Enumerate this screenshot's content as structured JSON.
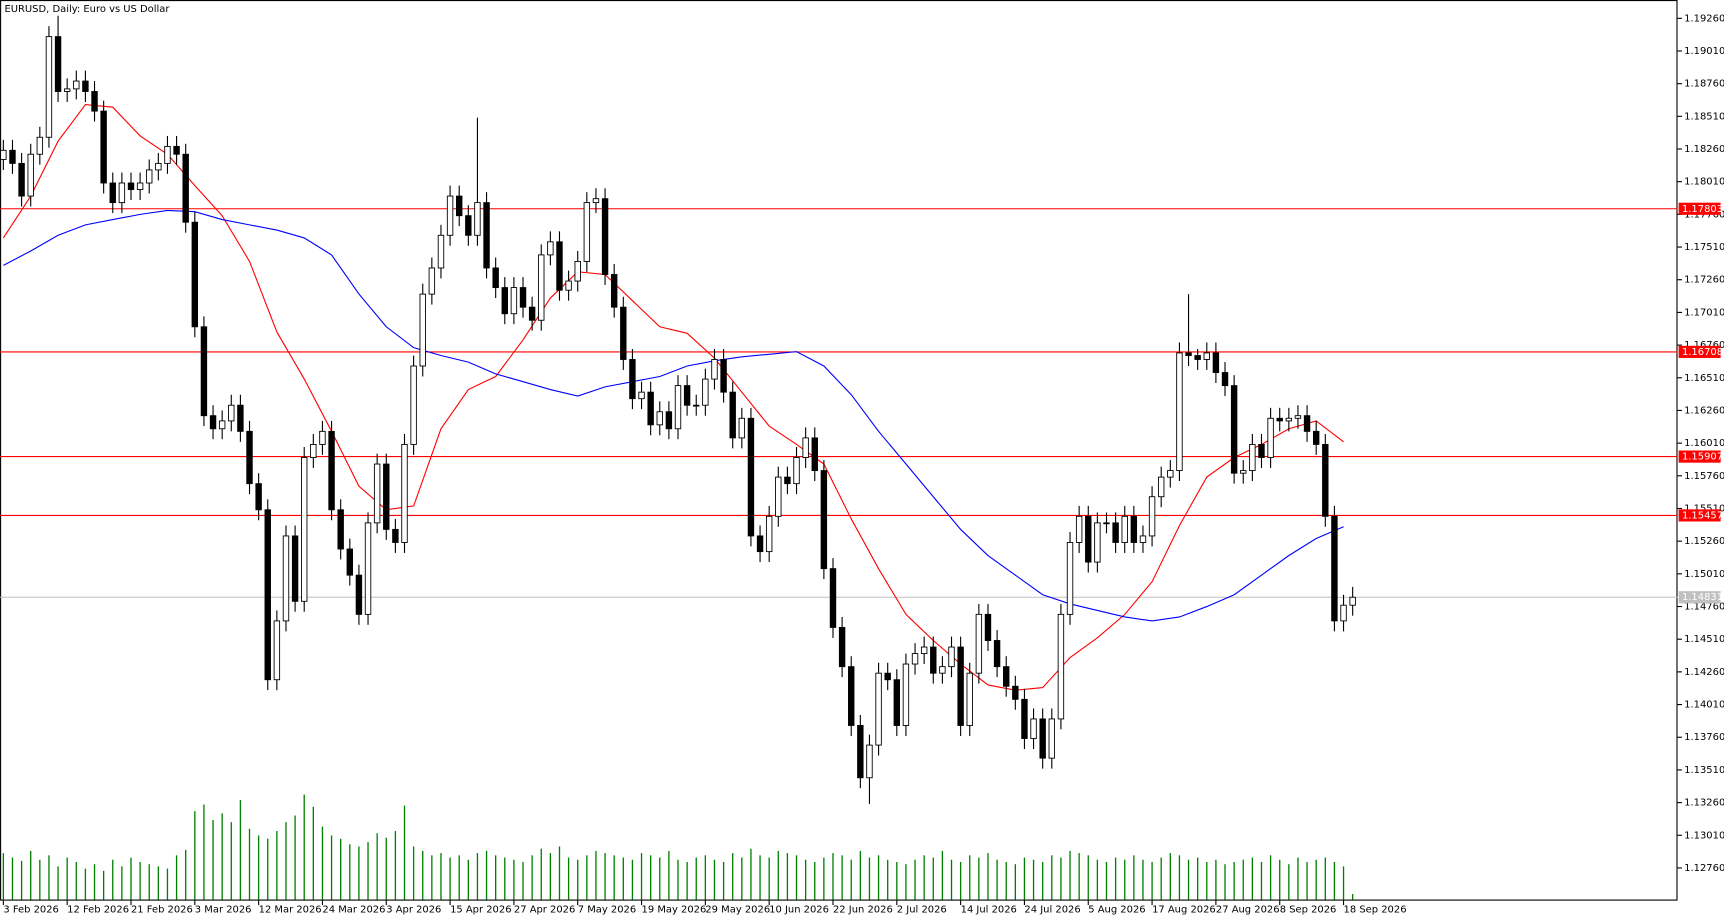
{
  "chart_data": {
    "type": "candlestick",
    "title": "EURUSD, Daily:  Euro vs US Dollar",
    "categories": [
      "3 Feb 2026",
      null,
      null,
      null,
      null,
      null,
      null,
      "12 Feb 2026",
      null,
      null,
      null,
      null,
      null,
      null,
      "21 Feb 2026",
      null,
      null,
      null,
      null,
      null,
      null,
      "3 Mar 2026",
      null,
      null,
      null,
      null,
      null,
      null,
      "12 Mar 2026",
      null,
      null,
      null,
      null,
      null,
      null,
      "24 Mar 2026",
      null,
      null,
      null,
      null,
      null,
      null,
      "3 Apr 2026",
      null,
      null,
      null,
      null,
      null,
      null,
      "15 Apr 2026",
      null,
      null,
      null,
      null,
      null,
      null,
      "27 Apr 2026",
      null,
      null,
      null,
      null,
      null,
      null,
      "7 May 2026",
      null,
      null,
      null,
      null,
      null,
      null,
      "19 May 2026",
      null,
      null,
      null,
      null,
      null,
      null,
      "29 May 2026",
      null,
      null,
      null,
      null,
      null,
      null,
      "10 Jun 2026",
      null,
      null,
      null,
      null,
      null,
      null,
      "22 Jun 2026",
      null,
      null,
      null,
      null,
      null,
      null,
      "2 Jul 2026",
      null,
      null,
      null,
      null,
      null,
      null,
      "14 Jul 2026",
      null,
      null,
      null,
      null,
      null,
      null,
      "24 Jul 2026",
      null,
      null,
      null,
      null,
      null,
      null,
      "5 Aug 2026",
      null,
      null,
      null,
      null,
      null,
      null,
      "17 Aug 2026",
      null,
      null,
      null,
      null,
      null,
      null,
      "27 Aug 2026",
      null,
      null,
      null,
      null,
      null,
      null,
      "8 Sep 2026",
      null,
      null,
      null,
      null,
      null,
      null,
      "18 Sep 2026",
      null
    ],
    "open": [
      1.1818,
      1.1825,
      1.1815,
      1.179,
      1.1822,
      1.1835,
      1.1912,
      1.187,
      1.1872,
      1.1878,
      1.187,
      1.1855,
      1.18,
      1.1785,
      1.18,
      1.1795,
      1.18,
      1.181,
      1.1815,
      1.1828,
      1.1822,
      1.177,
      1.169,
      1.1622,
      1.1612,
      1.1618,
      1.163,
      1.161,
      1.157,
      1.155,
      1.142,
      1.1465,
      1.153,
      1.148,
      1.159,
      1.16,
      1.161,
      1.155,
      1.152,
      1.15,
      1.147,
      1.154,
      1.1585,
      1.1535,
      1.1525,
      1.16,
      1.166,
      1.1715,
      1.1735,
      1.176,
      1.179,
      1.1775,
      1.176,
      1.1785,
      1.1735,
      1.172,
      1.17,
      1.172,
      1.1705,
      1.1695,
      1.1745,
      1.1755,
      1.1718,
      1.1725,
      1.174,
      1.1785,
      1.1788,
      1.173,
      1.1705,
      1.1665,
      1.1635,
      1.164,
      1.1615,
      1.1625,
      1.1612,
      1.1645,
      1.163,
      1.163,
      1.165,
      1.1665,
      1.164,
      1.1605,
      1.162,
      1.153,
      1.1518,
      1.1545,
      1.1575,
      1.157,
      1.159,
      1.1605,
      1.158,
      1.1505,
      1.146,
      1.143,
      1.1385,
      1.1345,
      1.137,
      1.1425,
      1.142,
      1.1385,
      1.1432,
      1.144,
      1.1445,
      1.1425,
      1.143,
      1.1445,
      1.1385,
      1.1425,
      1.147,
      1.145,
      1.143,
      1.1415,
      1.1405,
      1.1375,
      1.139,
      1.136,
      1.139,
      1.147,
      1.1525,
      1.1545,
      1.151,
      1.154,
      1.154,
      1.1525,
      1.1545,
      1.1525,
      1.153,
      1.156,
      1.1575,
      1.158,
      1.167,
      1.1668,
      1.1665,
      1.167,
      1.1655,
      1.1645,
      1.1578,
      1.158,
      1.16,
      1.159,
      1.162,
      1.1618,
      1.162,
      1.1622,
      1.161,
      1.16,
      1.1545,
      1.1465,
      1.1477
    ],
    "high": [
      1.1833,
      1.1833,
      1.1823,
      1.183,
      1.1843,
      1.192,
      1.1928,
      1.188,
      1.1886,
      1.1886,
      1.1878,
      1.1863,
      1.1808,
      1.1808,
      1.1808,
      1.1808,
      1.1818,
      1.1823,
      1.1836,
      1.1836,
      1.183,
      1.1778,
      1.1698,
      1.163,
      1.1626,
      1.1638,
      1.1638,
      1.1618,
      1.1578,
      1.1558,
      1.1473,
      1.1538,
      1.1538,
      1.1598,
      1.1608,
      1.1618,
      1.1618,
      1.1558,
      1.1528,
      1.1508,
      1.1548,
      1.1593,
      1.1593,
      1.1543,
      1.1608,
      1.1668,
      1.1723,
      1.1743,
      1.1768,
      1.1798,
      1.1798,
      1.1783,
      1.185,
      1.1793,
      1.1743,
      1.1728,
      1.1728,
      1.1728,
      1.1713,
      1.1753,
      1.1763,
      1.1763,
      1.1733,
      1.1748,
      1.1793,
      1.1796,
      1.1796,
      1.1738,
      1.1713,
      1.1673,
      1.1648,
      1.1648,
      1.1633,
      1.1633,
      1.1653,
      1.1653,
      1.1638,
      1.1658,
      1.1673,
      1.1673,
      1.1648,
      1.1628,
      1.1628,
      1.1538,
      1.1553,
      1.1583,
      1.1583,
      1.1598,
      1.1613,
      1.1613,
      1.1588,
      1.1513,
      1.1468,
      1.1438,
      1.1393,
      1.1378,
      1.1433,
      1.1433,
      1.1428,
      1.144,
      1.1448,
      1.1453,
      1.1453,
      1.1438,
      1.1453,
      1.1453,
      1.1433,
      1.1478,
      1.1478,
      1.1458,
      1.1438,
      1.1423,
      1.1413,
      1.1398,
      1.1398,
      1.1398,
      1.1478,
      1.1533,
      1.1553,
      1.1553,
      1.1548,
      1.1548,
      1.1548,
      1.1553,
      1.1553,
      1.1538,
      1.1568,
      1.1583,
      1.1588,
      1.1678,
      1.1715,
      1.1673,
      1.1678,
      1.1678,
      1.1663,
      1.1653,
      1.1588,
      1.1608,
      1.1608,
      1.1628,
      1.1628,
      1.1628,
      1.163,
      1.163,
      1.1618,
      1.1608,
      1.1553,
      1.1485,
      1.1491
    ],
    "low": [
      1.181,
      1.1807,
      1.1782,
      1.1782,
      1.1814,
      1.1827,
      1.1862,
      1.1862,
      1.1864,
      1.1862,
      1.1847,
      1.1792,
      1.1777,
      1.1777,
      1.1787,
      1.1787,
      1.1792,
      1.1802,
      1.1807,
      1.1814,
      1.1762,
      1.1682,
      1.1614,
      1.1604,
      1.1604,
      1.161,
      1.1602,
      1.1562,
      1.1542,
      1.1412,
      1.1412,
      1.1457,
      1.1472,
      1.1472,
      1.1582,
      1.1592,
      1.1542,
      1.1512,
      1.1492,
      1.1462,
      1.1462,
      1.1532,
      1.1527,
      1.1517,
      1.1517,
      1.1592,
      1.1652,
      1.1707,
      1.1727,
      1.1752,
      1.1767,
      1.1752,
      1.1752,
      1.1727,
      1.1712,
      1.1692,
      1.1692,
      1.1697,
      1.1687,
      1.1687,
      1.1737,
      1.171,
      1.171,
      1.1717,
      1.1732,
      1.1777,
      1.1722,
      1.1697,
      1.1657,
      1.1627,
      1.1627,
      1.1607,
      1.1607,
      1.1604,
      1.1604,
      1.1622,
      1.1622,
      1.1622,
      1.1642,
      1.1632,
      1.1597,
      1.1597,
      1.1522,
      1.151,
      1.151,
      1.1537,
      1.1562,
      1.1562,
      1.1582,
      1.1572,
      1.1497,
      1.1452,
      1.1422,
      1.1377,
      1.1337,
      1.1325,
      1.1362,
      1.1412,
      1.1377,
      1.1377,
      1.1424,
      1.1432,
      1.1417,
      1.1417,
      1.1422,
      1.1377,
      1.1377,
      1.1417,
      1.1442,
      1.1422,
      1.1407,
      1.1397,
      1.1367,
      1.1367,
      1.1352,
      1.1352,
      1.1382,
      1.1462,
      1.1517,
      1.1502,
      1.1502,
      1.1532,
      1.1517,
      1.1517,
      1.1517,
      1.1517,
      1.1522,
      1.1552,
      1.1567,
      1.1572,
      1.166,
      1.1657,
      1.1657,
      1.1647,
      1.1637,
      1.157,
      1.157,
      1.1572,
      1.1582,
      1.1582,
      1.161,
      1.161,
      1.1612,
      1.1602,
      1.1592,
      1.1537,
      1.1457,
      1.1457,
      1.1469
    ],
    "close": [
      1.1825,
      1.1815,
      1.179,
      1.1822,
      1.1835,
      1.1912,
      1.187,
      1.1872,
      1.1878,
      1.187,
      1.1855,
      1.18,
      1.1785,
      1.18,
      1.1795,
      1.18,
      1.181,
      1.1815,
      1.1828,
      1.1822,
      1.177,
      1.169,
      1.1622,
      1.1612,
      1.1618,
      1.163,
      1.161,
      1.157,
      1.155,
      1.142,
      1.1465,
      1.153,
      1.148,
      1.159,
      1.16,
      1.161,
      1.155,
      1.152,
      1.15,
      1.147,
      1.154,
      1.1585,
      1.1535,
      1.1525,
      1.16,
      1.166,
      1.1715,
      1.1735,
      1.176,
      1.179,
      1.1775,
      1.176,
      1.1785,
      1.1735,
      1.172,
      1.17,
      1.172,
      1.1705,
      1.1695,
      1.1745,
      1.1755,
      1.1718,
      1.1725,
      1.174,
      1.1785,
      1.1788,
      1.173,
      1.1705,
      1.1665,
      1.1635,
      1.164,
      1.1615,
      1.1625,
      1.1612,
      1.1645,
      1.163,
      1.163,
      1.165,
      1.1665,
      1.164,
      1.1605,
      1.162,
      1.153,
      1.1518,
      1.1545,
      1.1575,
      1.157,
      1.159,
      1.1605,
      1.158,
      1.1505,
      1.146,
      1.143,
      1.1385,
      1.1345,
      1.137,
      1.1425,
      1.142,
      1.1385,
      1.1432,
      1.144,
      1.1445,
      1.1425,
      1.143,
      1.1445,
      1.1385,
      1.1425,
      1.147,
      1.145,
      1.143,
      1.1415,
      1.1405,
      1.1375,
      1.139,
      1.136,
      1.139,
      1.147,
      1.1525,
      1.1545,
      1.151,
      1.154,
      1.154,
      1.1525,
      1.1545,
      1.1525,
      1.153,
      1.156,
      1.1575,
      1.158,
      1.167,
      1.1668,
      1.1665,
      1.167,
      1.1655,
      1.1645,
      1.1578,
      1.158,
      1.16,
      1.159,
      1.162,
      1.1618,
      1.162,
      1.1622,
      1.161,
      1.16,
      1.1545,
      1.1465,
      1.1477,
      1.14831
    ],
    "volume": {
      "color": "#008000",
      "values": [
        42,
        38,
        35,
        44,
        36,
        40,
        30,
        38,
        34,
        28,
        32,
        26,
        36,
        30,
        38,
        34,
        32,
        30,
        28,
        40,
        45,
        80,
        86,
        72,
        78,
        70,
        90,
        64,
        58,
        55,
        62,
        70,
        76,
        95,
        84,
        66,
        58,
        55,
        50,
        48,
        52,
        60,
        56,
        62,
        85,
        48,
        44,
        40,
        42,
        38,
        40,
        36,
        42,
        44,
        40,
        38,
        36,
        34,
        40,
        46,
        42,
        48,
        38,
        36,
        40,
        44,
        42,
        40,
        38,
        36,
        42,
        40,
        38,
        44,
        36,
        34,
        38,
        40,
        36,
        34,
        42,
        38,
        46,
        40,
        38,
        44,
        42,
        40,
        36,
        34,
        38,
        42,
        40,
        36,
        44,
        38,
        40,
        36,
        34,
        32,
        36,
        40,
        38,
        44,
        36,
        34,
        40,
        38,
        42,
        36,
        34,
        32,
        38,
        36,
        34,
        40,
        38,
        44,
        42,
        40,
        36,
        34,
        38,
        36,
        40,
        36,
        34,
        38,
        42,
        40,
        36,
        38,
        34,
        36,
        32,
        34,
        36,
        38,
        34,
        40,
        36,
        32,
        38,
        34,
        36,
        38,
        34,
        30,
        5
      ]
    },
    "overlays": [
      {
        "color": "#ff0000",
        "x": [
          0,
          3,
          6,
          9,
          12,
          15,
          18,
          21,
          24,
          27,
          30,
          33,
          36,
          39,
          42,
          45,
          48,
          51,
          54,
          57,
          60,
          63,
          66,
          69,
          72,
          75,
          78,
          81,
          84,
          87,
          90,
          93,
          96,
          99,
          102,
          105,
          108,
          111,
          114,
          117,
          120,
          123,
          126,
          129,
          132,
          135,
          138,
          141,
          144,
          147
        ],
        "values": [
          1.1758,
          1.179,
          1.1832,
          1.186,
          1.1858,
          1.1836,
          1.1822,
          1.1798,
          1.1775,
          1.174,
          1.1686,
          1.165,
          1.161,
          1.1568,
          1.155,
          1.1553,
          1.1612,
          1.1642,
          1.1652,
          1.168,
          1.1712,
          1.1732,
          1.173,
          1.171,
          1.169,
          1.1685,
          1.1666,
          1.164,
          1.1614,
          1.16,
          1.1585,
          1.1543,
          1.1505,
          1.147,
          1.145,
          1.1432,
          1.1416,
          1.1412,
          1.1414,
          1.1437,
          1.1452,
          1.147,
          1.1495,
          1.1538,
          1.1575,
          1.159,
          1.16,
          1.1612,
          1.1618,
          1.1602
        ]
      },
      {
        "color": "#0000ff",
        "x": [
          0,
          3,
          6,
          9,
          12,
          15,
          18,
          21,
          24,
          27,
          30,
          33,
          36,
          39,
          42,
          45,
          48,
          51,
          54,
          57,
          60,
          63,
          66,
          69,
          72,
          75,
          78,
          81,
          84,
          87,
          90,
          93,
          96,
          99,
          102,
          105,
          108,
          111,
          114,
          117,
          120,
          123,
          126,
          129,
          132,
          135,
          138,
          141,
          144,
          147
        ],
        "values": [
          1.1737,
          1.1748,
          1.176,
          1.1768,
          1.1772,
          1.1776,
          1.1779,
          1.1778,
          1.1772,
          1.1768,
          1.1764,
          1.1758,
          1.1745,
          1.1715,
          1.169,
          1.1674,
          1.1668,
          1.1663,
          1.1654,
          1.1648,
          1.1642,
          1.1637,
          1.1644,
          1.1648,
          1.1652,
          1.166,
          1.1664,
          1.1667,
          1.1669,
          1.1671,
          1.166,
          1.1638,
          1.161,
          1.1585,
          1.156,
          1.1535,
          1.1515,
          1.15,
          1.1485,
          1.1478,
          1.1473,
          1.1468,
          1.1465,
          1.1468,
          1.1476,
          1.1485,
          1.15,
          1.1515,
          1.1528,
          1.1537
        ]
      }
    ],
    "levels": [
      {
        "value": 1.17803,
        "color": "#ff0000"
      },
      {
        "value": 1.16708,
        "color": "#ff0000"
      },
      {
        "value": 1.15907,
        "color": "#ff0000"
      },
      {
        "value": 1.15457,
        "color": "#ff0000"
      }
    ],
    "current_price": {
      "value": 1.14831,
      "color": "#c0c0c0"
    },
    "ylim": [
      1.1251,
      1.194
    ],
    "yticks": [
      {
        "value": 1.1926,
        "label": "1.19260"
      },
      {
        "value": 1.1901,
        "label": "1.19010"
      },
      {
        "value": 1.1876,
        "label": "1.18760"
      },
      {
        "value": 1.1851,
        "label": "1.18510"
      },
      {
        "value": 1.1826,
        "label": "1.18260"
      },
      {
        "value": 1.1801,
        "label": "1.18010"
      },
      {
        "value": 1.1776,
        "label": "1.17760"
      },
      {
        "value": 1.1751,
        "label": "1.17510"
      },
      {
        "value": 1.1726,
        "label": "1.17260"
      },
      {
        "value": 1.1701,
        "label": "1.17010"
      },
      {
        "value": 1.1676,
        "label": "1.16760"
      },
      {
        "value": 1.1651,
        "label": "1.16510"
      },
      {
        "value": 1.1626,
        "label": "1.16260"
      },
      {
        "value": 1.1601,
        "label": "1.16010"
      },
      {
        "value": 1.1576,
        "label": "1.15760"
      },
      {
        "value": 1.1551,
        "label": "1.15510"
      },
      {
        "value": 1.1526,
        "label": "1.15260"
      },
      {
        "value": 1.1501,
        "label": "1.15010"
      },
      {
        "value": 1.1476,
        "label": "1.14760"
      },
      {
        "value": 1.1451,
        "label": "1.14510"
      },
      {
        "value": 1.1426,
        "label": "1.14260"
      },
      {
        "value": 1.1401,
        "label": "1.14010"
      },
      {
        "value": 1.1376,
        "label": "1.13760"
      },
      {
        "value": 1.1351,
        "label": "1.13510"
      },
      {
        "value": 1.1326,
        "label": "1.13260"
      },
      {
        "value": 1.1301,
        "label": "1.13010"
      },
      {
        "value": 1.1276,
        "label": "1.12760"
      }
    ],
    "up_color": "#ffffff",
    "down_color": "#000000",
    "grid": false
  }
}
